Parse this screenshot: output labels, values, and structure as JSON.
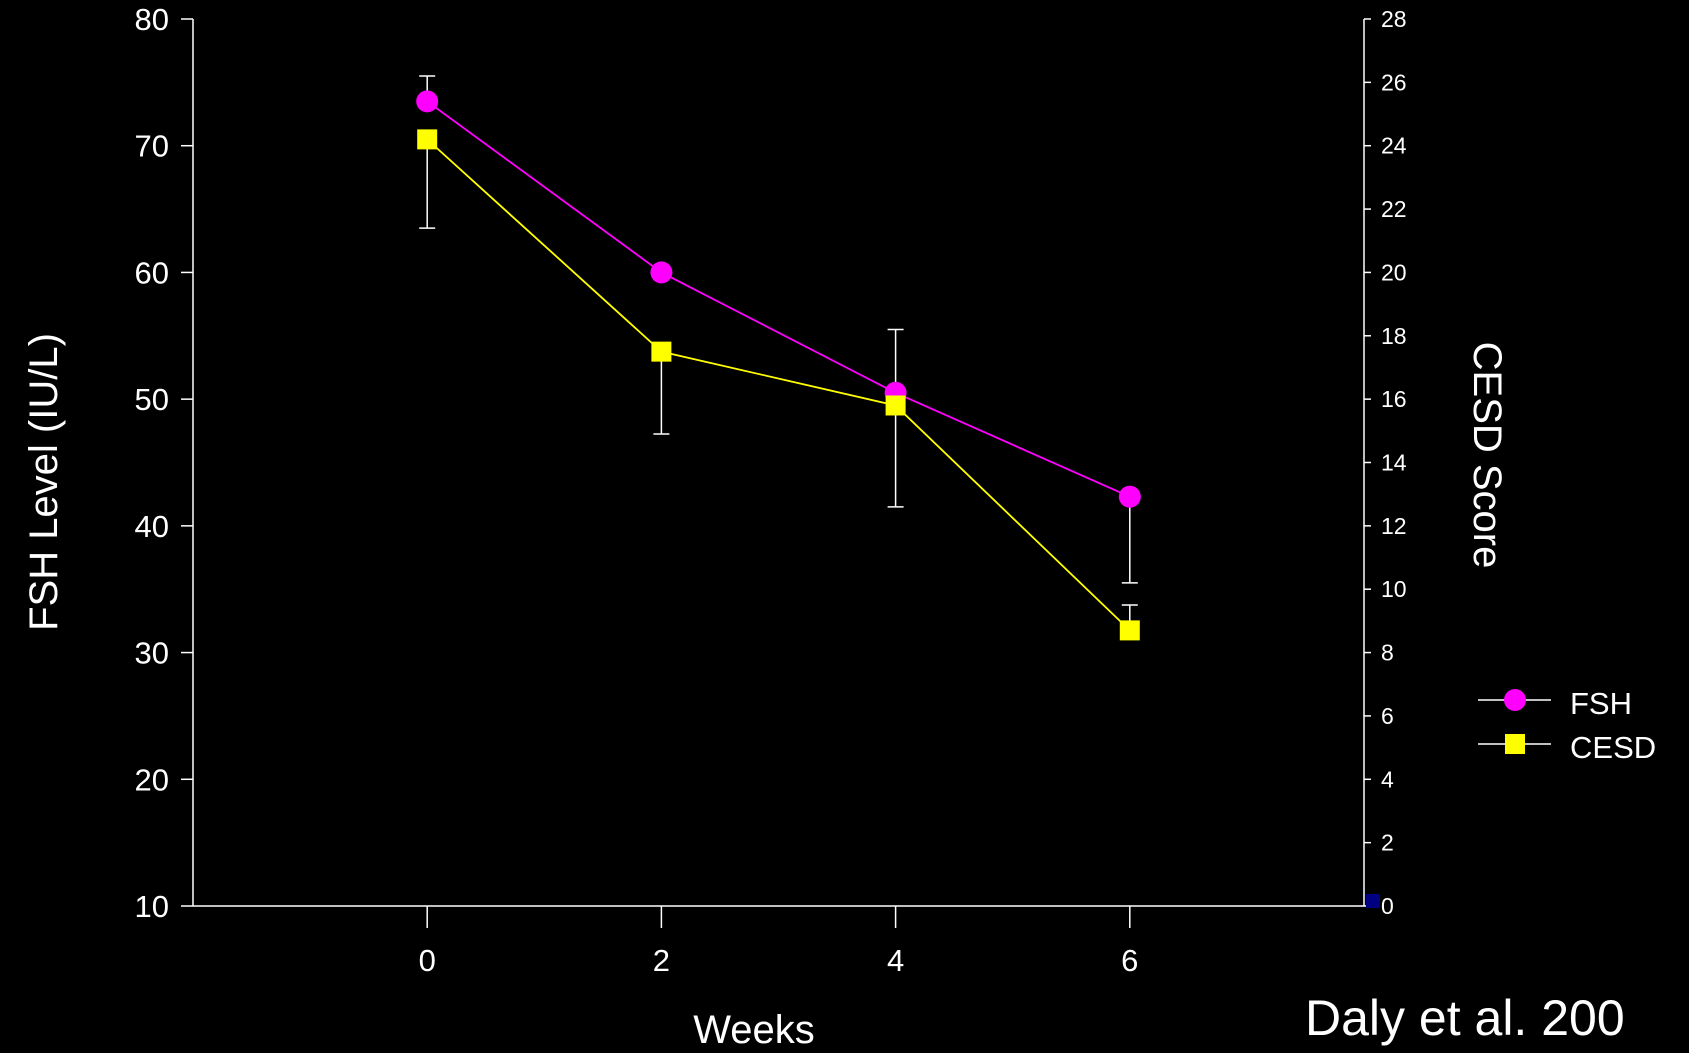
{
  "chart_data": {
    "type": "line",
    "xlabel": "Weeks",
    "ylabel": "FSH Level (IU/L)",
    "y2label": "CESD Score",
    "x": [
      0,
      2,
      4,
      6
    ],
    "x_ticks": [
      "0",
      "2",
      "4",
      "6"
    ],
    "xlim": [
      -2,
      8
    ],
    "ylim": [
      10,
      80
    ],
    "y_ticks": [
      "10",
      "20",
      "30",
      "40",
      "50",
      "60",
      "70",
      "80"
    ],
    "y2lim": [
      0,
      28
    ],
    "y2_ticks": [
      "0",
      "2",
      "4",
      "6",
      "8",
      "10",
      "12",
      "14",
      "16",
      "18",
      "20",
      "22",
      "24",
      "26",
      "28"
    ],
    "series": [
      {
        "name": "FSH",
        "axis": "left",
        "marker": "circle",
        "color": "#FF00FF",
        "values": [
          73.5,
          60,
          50.5,
          42.3
        ],
        "error_upper": [
          75.5,
          60,
          55.5,
          42.3
        ],
        "error_lower": [
          73.5,
          60,
          50.5,
          35.5
        ]
      },
      {
        "name": "CESD",
        "axis": "right",
        "marker": "square",
        "color": "#FFFF00",
        "values": [
          24.2,
          17.5,
          15.8,
          8.7
        ],
        "error_upper": [
          24.2,
          17.5,
          15.8,
          9.5
        ],
        "error_lower": [
          21.4,
          14.9,
          12.6,
          8.7
        ]
      }
    ],
    "legend_position": "right",
    "grid": false
  },
  "citation": "Daly et al. 200"
}
